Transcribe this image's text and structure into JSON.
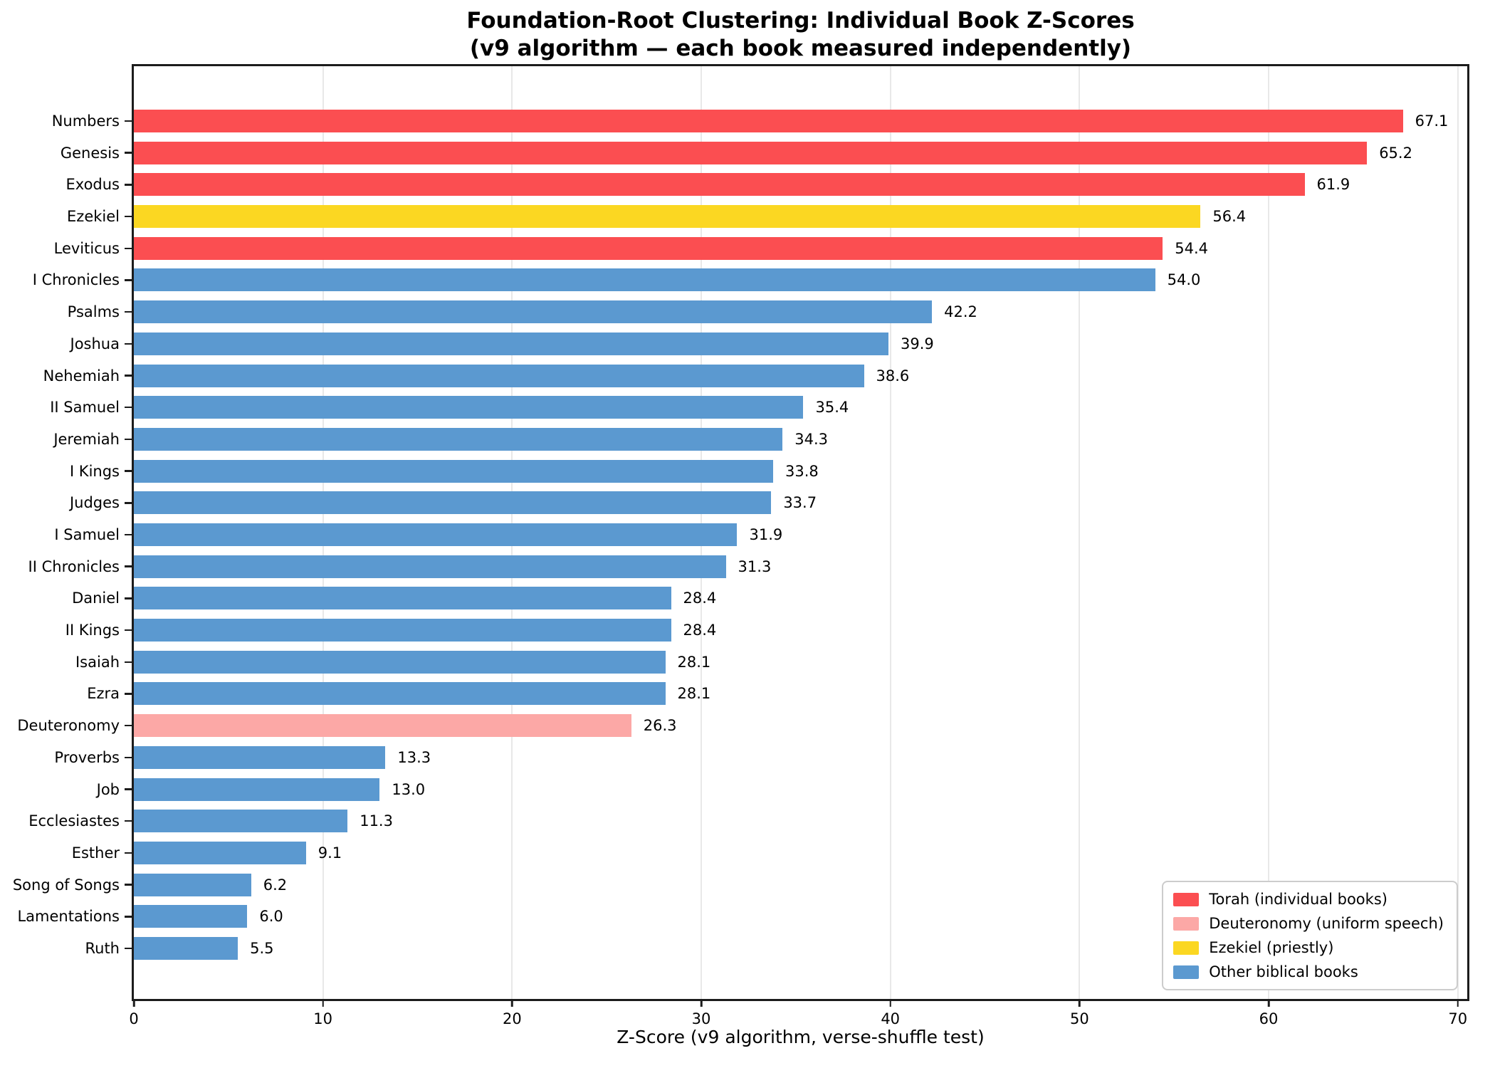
{
  "figure": {
    "title": "Foundation-Root Clustering: Individual Book Z-Scores\n(v9 algorithm — each book measured independently)"
  },
  "chart_data": {
    "type": "bar",
    "orientation": "horizontal",
    "title": "Foundation-Root Clustering: Individual Book Z-Scores",
    "subtitle": "(v9 algorithm — each book measured independently)",
    "xlabel": "Z-Score (v9 algorithm, verse-shuffle test)",
    "ylabel": "",
    "xlim": [
      0,
      70.5
    ],
    "xticks": [
      0,
      10,
      20,
      30,
      40,
      50,
      60,
      70
    ],
    "grid": "vertical gridlines at each x tick, light gray, behind bars",
    "legend_position": "lower right",
    "value_labels": "each bar labeled with value to one decimal, right of bar end",
    "groups": {
      "torah": {
        "label": "Torah (individual books)",
        "color": "#FB4E51"
      },
      "deuteronomy": {
        "label": "Deuteronomy (uniform speech)",
        "color": "#FCA8A6"
      },
      "ezekiel": {
        "label": "Ezekiel (priestly)",
        "color": "#FBD722"
      },
      "other": {
        "label": "Other biblical books",
        "color": "#5B99D0"
      }
    },
    "legend_order": [
      "torah",
      "deuteronomy",
      "ezekiel",
      "other"
    ],
    "books": [
      {
        "name": "Numbers",
        "value": 67.1,
        "group": "torah"
      },
      {
        "name": "Genesis",
        "value": 65.2,
        "group": "torah"
      },
      {
        "name": "Exodus",
        "value": 61.9,
        "group": "torah"
      },
      {
        "name": "Ezekiel",
        "value": 56.4,
        "group": "ezekiel"
      },
      {
        "name": "Leviticus",
        "value": 54.4,
        "group": "torah"
      },
      {
        "name": "I Chronicles",
        "value": 54.0,
        "group": "other"
      },
      {
        "name": "Psalms",
        "value": 42.2,
        "group": "other"
      },
      {
        "name": "Joshua",
        "value": 39.9,
        "group": "other"
      },
      {
        "name": "Nehemiah",
        "value": 38.6,
        "group": "other"
      },
      {
        "name": "II Samuel",
        "value": 35.4,
        "group": "other"
      },
      {
        "name": "Jeremiah",
        "value": 34.3,
        "group": "other"
      },
      {
        "name": "I Kings",
        "value": 33.8,
        "group": "other"
      },
      {
        "name": "Judges",
        "value": 33.7,
        "group": "other"
      },
      {
        "name": "I Samuel",
        "value": 31.9,
        "group": "other"
      },
      {
        "name": "II Chronicles",
        "value": 31.3,
        "group": "other"
      },
      {
        "name": "Daniel",
        "value": 28.4,
        "group": "other"
      },
      {
        "name": "II Kings",
        "value": 28.4,
        "group": "other"
      },
      {
        "name": "Isaiah",
        "value": 28.1,
        "group": "other"
      },
      {
        "name": "Ezra",
        "value": 28.1,
        "group": "other"
      },
      {
        "name": "Deuteronomy",
        "value": 26.3,
        "group": "deuteronomy"
      },
      {
        "name": "Proverbs",
        "value": 13.3,
        "group": "other"
      },
      {
        "name": "Job",
        "value": 13.0,
        "group": "other"
      },
      {
        "name": "Ecclesiastes",
        "value": 11.3,
        "group": "other"
      },
      {
        "name": "Esther",
        "value": 9.1,
        "group": "other"
      },
      {
        "name": "Song of Songs",
        "value": 6.2,
        "group": "other"
      },
      {
        "name": "Lamentations",
        "value": 6.0,
        "group": "other"
      },
      {
        "name": "Ruth",
        "value": 5.5,
        "group": "other"
      }
    ]
  }
}
